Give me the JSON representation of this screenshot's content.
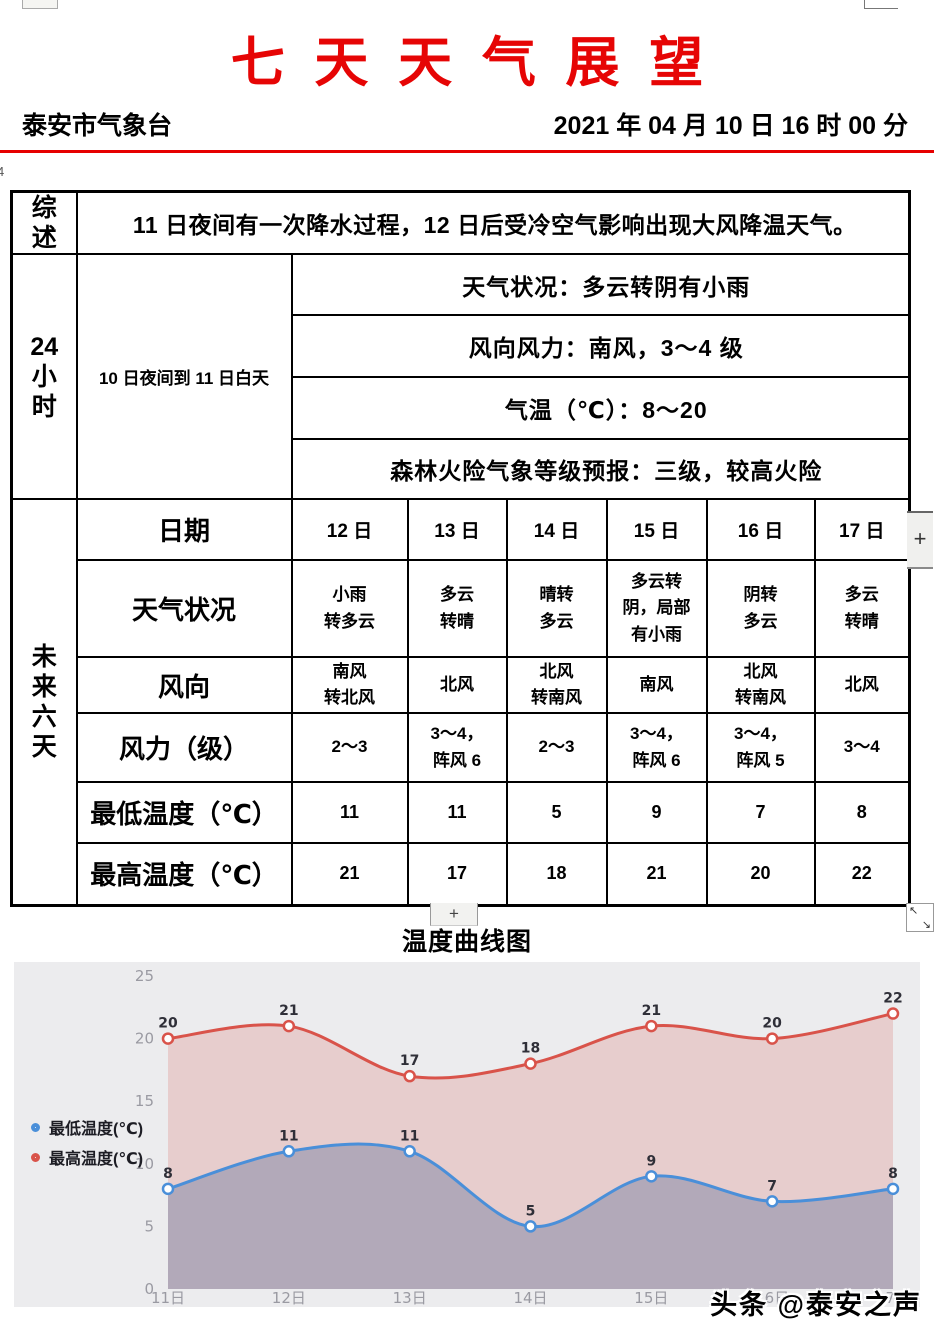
{
  "header": {
    "title": "七天天气展望",
    "station": "泰安市气象台",
    "datetime": "2021 年 04 月 10 日 16 时 00 分",
    "accent_color": "#e60000"
  },
  "summary": {
    "label": "综\n述",
    "text": "11 日夜间有一次降水过程，12 日后受冷空气影响出现大风降温天气。"
  },
  "h24": {
    "label": "24\n小\n时",
    "period": "10 日夜间到 11 日白天",
    "weather": "天气状况：多云转阴有小雨",
    "wind": "风向风力：南风，3～4 级",
    "temp": "气温（℃）：8～20",
    "fire": "森林火险气象等级预报：三级，较高火险"
  },
  "forecast": {
    "label": "未\n来\n六\n天",
    "row_headers": {
      "date": "日期",
      "weather": "天气状况",
      "wind_dir": "风向",
      "wind_force": "风力（级）",
      "t_min": "最低温度（℃）",
      "t_max": "最高温度（℃）"
    },
    "dates": [
      "12 日",
      "13 日",
      "14 日",
      "15 日",
      "16 日",
      "17 日"
    ],
    "weather": [
      "小雨\n转多云",
      "多云\n转晴",
      "晴转\n多云",
      "多云转\n阴，局部\n有小雨",
      "阴转\n多云",
      "多云\n转晴"
    ],
    "wind_dir": [
      "南风\n转北风",
      "北风",
      "北风\n转南风",
      "南风",
      "北风\n转南风",
      "北风"
    ],
    "wind_force": [
      "2～3",
      "3～4，\n阵风 6",
      "2～3",
      "3～4，\n阵风 6",
      "3～4，\n阵风 5",
      "3～4"
    ],
    "t_min": [
      "11",
      "11",
      "5",
      "9",
      "7",
      "8"
    ],
    "t_max": [
      "21",
      "17",
      "18",
      "21",
      "20",
      "22"
    ]
  },
  "chart_title": "温度曲线图",
  "chart_data": {
    "type": "line",
    "title": "温度曲线图",
    "x": [
      "11日",
      "12日",
      "13日",
      "14日",
      "15日",
      "16日",
      "17日"
    ],
    "series": [
      {
        "name": "最低温度(℃)",
        "color": "#4a8fd9",
        "fill": "rgba(100,115,155,0.40)",
        "values": [
          8,
          11,
          11,
          5,
          9,
          7,
          8
        ]
      },
      {
        "name": "最高温度(℃)",
        "color": "#d9534a",
        "fill": "rgba(217,83,74,0.20)",
        "values": [
          20,
          21,
          17,
          18,
          21,
          20,
          22
        ]
      }
    ],
    "ylim": [
      0,
      25
    ],
    "yticks": [
      0,
      5,
      10,
      15,
      20,
      25
    ],
    "grid": false,
    "legend_position": "left",
    "background": "#ececee",
    "label_color": "#2f2f38",
    "tick_color": "#9a9aa2"
  },
  "watermark": "头条 @泰安之声",
  "widgets": {
    "scroll_plus": "+",
    "title_plus": "+",
    "resize_nw": "↖",
    "resize_se": "↘",
    "margin_mark": "4"
  }
}
